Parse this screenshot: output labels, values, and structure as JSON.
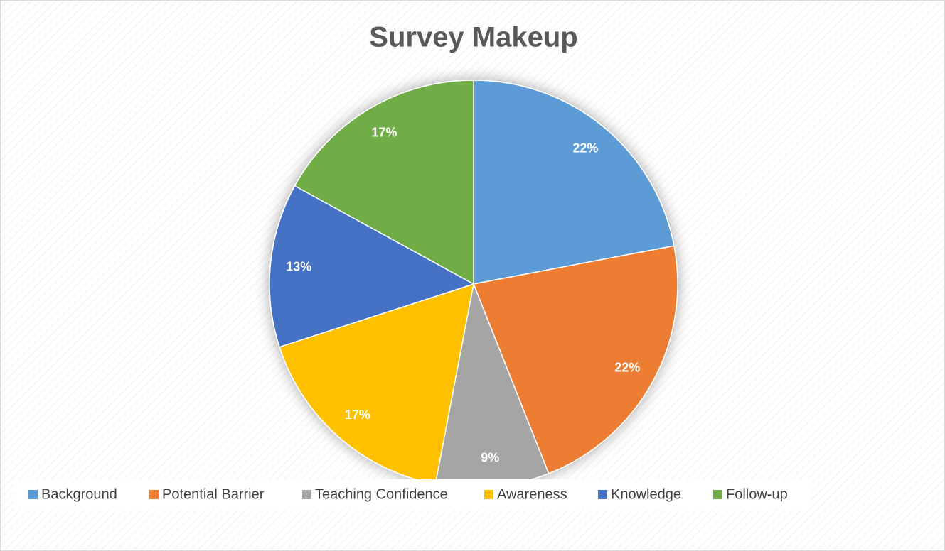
{
  "chart_data": {
    "type": "pie",
    "title": "Survey Makeup",
    "categories": [
      "Background",
      "Potential Barrier",
      "Teaching Confidence",
      "Awareness",
      "Knowledge",
      "Follow-up"
    ],
    "values": [
      22,
      22,
      9,
      17,
      13,
      17
    ],
    "value_labels": [
      "22%",
      "22%",
      "9%",
      "17%",
      "13%",
      "17%"
    ],
    "colors": [
      "#5b9bd5",
      "#ed7d31",
      "#a5a5a5",
      "#ffc000",
      "#4472c4",
      "#70ad47"
    ],
    "legend": "bottom"
  }
}
